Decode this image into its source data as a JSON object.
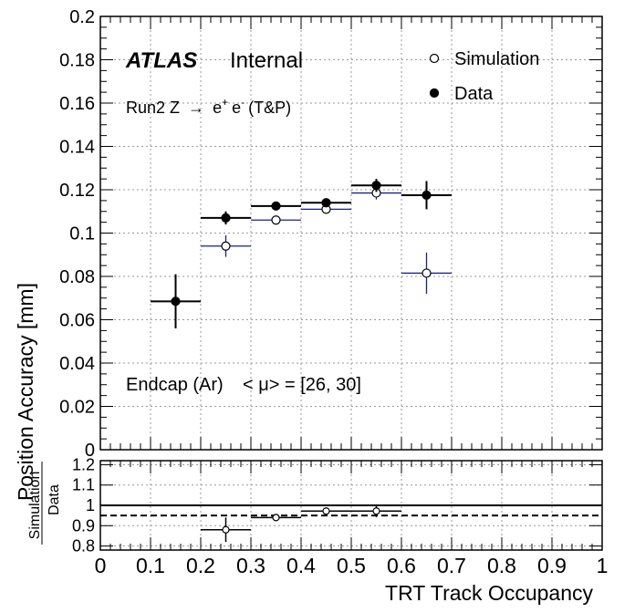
{
  "chart_data": [
    {
      "type": "scatter",
      "title": "",
      "xlabel": "TRT Track Occupancy",
      "ylabel": "Position Accuracy [mm]",
      "xlim": [
        0,
        1
      ],
      "ylim": [
        0,
        0.2
      ],
      "yticks": [
        "0",
        "0.02",
        "0.04",
        "0.06",
        "0.08",
        "0.1",
        "0.12",
        "0.14",
        "0.16",
        "0.18",
        "0.2"
      ],
      "grid": true,
      "legend_position": "top-right",
      "annotations": {
        "atlas": "ATLAS",
        "internal": "Internal",
        "process_prefix": "Run2 Z",
        "process_arrow": "→",
        "process_e1": "e",
        "process_sup1": "+",
        "process_e2": "e",
        "process_sup2": "-",
        "process_suffix": "(T&P)",
        "region": "Endcap (Ar)",
        "pileup": "< μ> = [26, 30]"
      },
      "series": [
        {
          "name": "Simulation",
          "marker": "open-circle",
          "color": "#1a237e",
          "points": [
            {
              "x": 0.25,
              "xerr": 0.05,
              "y": 0.094,
              "yerr": 0.005
            },
            {
              "x": 0.35,
              "xerr": 0.05,
              "y": 0.106,
              "yerr": 0.0015
            },
            {
              "x": 0.45,
              "xerr": 0.05,
              "y": 0.111,
              "yerr": 0.0012
            },
            {
              "x": 0.55,
              "xerr": 0.05,
              "y": 0.1185,
              "yerr": 0.003
            },
            {
              "x": 0.65,
              "xerr": 0.05,
              "y": 0.0815,
              "yerr": 0.0095
            }
          ]
        },
        {
          "name": "Data",
          "marker": "filled-circle",
          "color": "#000000",
          "points": [
            {
              "x": 0.15,
              "xerr": 0.05,
              "y": 0.0685,
              "yerr": 0.0125
            },
            {
              "x": 0.25,
              "xerr": 0.05,
              "y": 0.107,
              "yerr": 0.003
            },
            {
              "x": 0.35,
              "xerr": 0.05,
              "y": 0.1125,
              "yerr": 0.001
            },
            {
              "x": 0.45,
              "xerr": 0.05,
              "y": 0.114,
              "yerr": 0.001
            },
            {
              "x": 0.55,
              "xerr": 0.05,
              "y": 0.122,
              "yerr": 0.003
            },
            {
              "x": 0.65,
              "xerr": 0.05,
              "y": 0.1175,
              "yerr": 0.0065
            }
          ]
        }
      ]
    },
    {
      "type": "scatter",
      "title": "",
      "xlabel": "TRT Track Occupancy",
      "ylabel_num": "Simulation",
      "ylabel_den": "Data",
      "xlim": [
        0,
        1
      ],
      "ylim": [
        0.78,
        1.22
      ],
      "xticks": [
        "0",
        "0.1",
        "0.2",
        "0.3",
        "0.4",
        "0.5",
        "0.6",
        "0.7",
        "0.8",
        "0.9",
        "1"
      ],
      "yticks": [
        "0.8",
        "0.9",
        "1",
        "1.1",
        "1.2"
      ],
      "grid": true,
      "reference_lines": [
        {
          "y": 1.0,
          "style": "solid"
        },
        {
          "y": 0.95,
          "style": "dashed"
        }
      ],
      "series": [
        {
          "name": "",
          "marker": "open-circle",
          "color": "#000000",
          "points": [
            {
              "x": 0.25,
              "xerr": 0.05,
              "y": 0.88,
              "yerr": 0.06
            },
            {
              "x": 0.35,
              "xerr": 0.05,
              "y": 0.94,
              "yerr": 0.01
            },
            {
              "x": 0.45,
              "xerr": 0.05,
              "y": 0.972,
              "yerr": 0.015
            },
            {
              "x": 0.55,
              "xerr": 0.05,
              "y": 0.972,
              "yerr": 0.03
            }
          ]
        }
      ]
    }
  ]
}
